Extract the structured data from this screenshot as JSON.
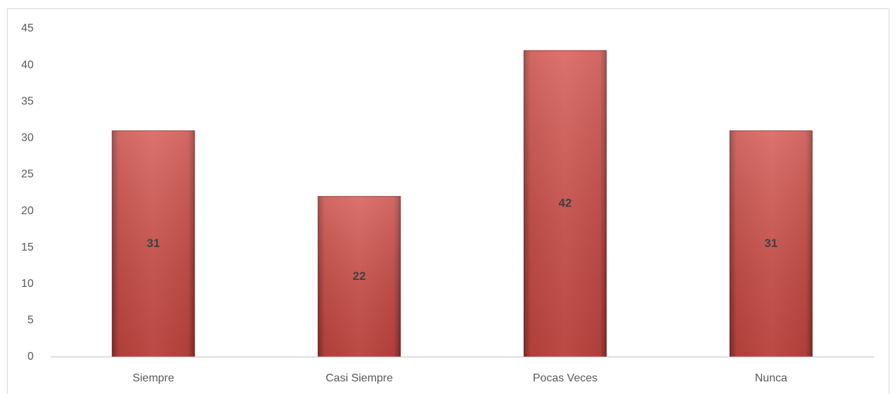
{
  "chart_data": {
    "type": "bar",
    "categories": [
      "Siempre",
      "Casi Siempre",
      "Pocas Veces",
      "Nunca"
    ],
    "values": [
      31,
      22,
      42,
      31
    ],
    "color": "#d24b45",
    "ylim": [
      0,
      45
    ],
    "yticks": [
      0,
      5,
      10,
      15,
      20,
      25,
      30,
      35,
      40,
      45
    ],
    "grid": false
  }
}
